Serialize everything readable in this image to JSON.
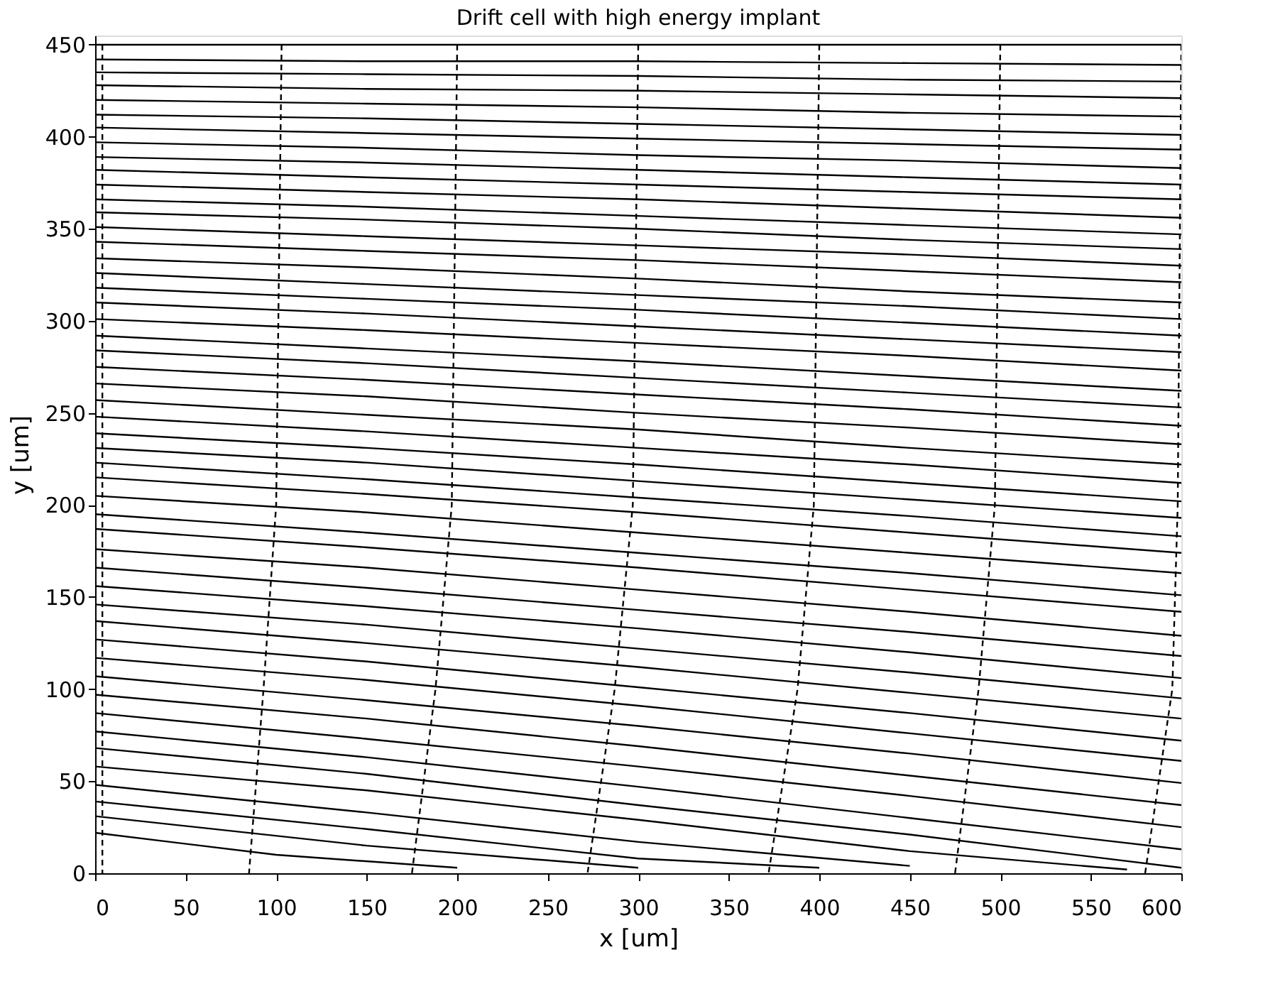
{
  "chart_data": {
    "type": "line",
    "title": "Drift cell with high energy implant",
    "xlabel": "x [um]",
    "ylabel": "y [um]",
    "xlim": [
      0,
      600
    ],
    "ylim": [
      0,
      455
    ],
    "xticks": [
      0,
      50,
      100,
      150,
      200,
      250,
      300,
      350,
      400,
      450,
      500,
      550,
      600
    ],
    "yticks": [
      0,
      50,
      100,
      150,
      200,
      250,
      300,
      350,
      400,
      450
    ],
    "grid": false,
    "legend": false,
    "line_style": "solid",
    "marker": "none",
    "x": [
      0,
      150,
      300,
      450,
      600
    ],
    "series": [
      {
        "color": "#000000",
        "values": [
          450,
          450,
          450,
          450,
          450
        ]
      },
      {
        "color": "#000000",
        "values": [
          442,
          441,
          441,
          440,
          439
        ]
      },
      {
        "color": "#000000",
        "values": [
          435,
          434,
          433,
          431,
          430
        ]
      },
      {
        "color": "#000000",
        "values": [
          428,
          426,
          425,
          423,
          421
        ]
      },
      {
        "color": "#000000",
        "values": [
          420,
          418,
          416,
          413,
          411
        ]
      },
      {
        "color": "#000000",
        "values": [
          412,
          410,
          407,
          404,
          401
        ]
      },
      {
        "color": "#000000",
        "values": [
          405,
          402,
          399,
          396,
          393
        ]
      },
      {
        "color": "#000000",
        "values": [
          397,
          394,
          390,
          387,
          383
        ]
      },
      {
        "color": "#000000",
        "values": [
          389,
          386,
          382,
          378,
          374
        ]
      },
      {
        "color": "#000000",
        "values": [
          382,
          378,
          374,
          370,
          366
        ]
      },
      {
        "color": "#000000",
        "values": [
          374,
          370,
          366,
          361,
          356
        ]
      },
      {
        "color": "#000000",
        "values": [
          366,
          362,
          357,
          352,
          347
        ]
      },
      {
        "color": "#000000",
        "values": [
          359,
          355,
          350,
          344,
          339
        ]
      },
      {
        "color": "#000000",
        "values": [
          351,
          346,
          341,
          336,
          330
        ]
      },
      {
        "color": "#000000",
        "values": [
          343,
          338,
          333,
          327,
          321
        ]
      },
      {
        "color": "#000000",
        "values": [
          334,
          329,
          323,
          316,
          310
        ]
      },
      {
        "color": "#000000",
        "values": [
          326,
          320,
          314,
          308,
          301
        ]
      },
      {
        "color": "#000000",
        "values": [
          318,
          312,
          306,
          299,
          292
        ]
      },
      {
        "color": "#000000",
        "values": [
          310,
          304,
          297,
          290,
          283
        ]
      },
      {
        "color": "#000000",
        "values": [
          301,
          295,
          288,
          281,
          273
        ]
      },
      {
        "color": "#000000",
        "values": [
          292,
          285,
          278,
          270,
          262
        ]
      },
      {
        "color": "#000000",
        "values": [
          284,
          277,
          269,
          261,
          253
        ]
      },
      {
        "color": "#000000",
        "values": [
          275,
          268,
          260,
          252,
          243
        ]
      },
      {
        "color": "#000000",
        "values": [
          266,
          259,
          250,
          242,
          233
        ]
      },
      {
        "color": "#000000",
        "values": [
          257,
          249,
          241,
          231,
          222
        ]
      },
      {
        "color": "#000000",
        "values": [
          248,
          240,
          231,
          222,
          212
        ]
      },
      {
        "color": "#000000",
        "values": [
          239,
          231,
          222,
          212,
          202
        ]
      },
      {
        "color": "#000000",
        "values": [
          231,
          223,
          213,
          203,
          193
        ]
      },
      {
        "color": "#000000",
        "values": [
          223,
          214,
          204,
          194,
          183
        ]
      },
      {
        "color": "#000000",
        "values": [
          215,
          206,
          196,
          185,
          174
        ]
      },
      {
        "color": "#000000",
        "values": [
          205,
          196,
          185,
          174,
          163
        ]
      },
      {
        "color": "#000000",
        "values": [
          195,
          185,
          174,
          163,
          151
        ]
      },
      {
        "color": "#000000",
        "values": [
          187,
          177,
          166,
          154,
          142
        ]
      },
      {
        "color": "#000000",
        "values": [
          176,
          166,
          154,
          142,
          129
        ]
      },
      {
        "color": "#000000",
        "values": [
          166,
          155,
          143,
          131,
          118
        ]
      },
      {
        "color": "#000000",
        "values": [
          156,
          145,
          133,
          120,
          106
        ]
      },
      {
        "color": "#000000",
        "values": [
          146,
          135,
          122,
          109,
          95
        ]
      },
      {
        "color": "#000000",
        "values": [
          137,
          125,
          112,
          98,
          84
        ]
      },
      {
        "color": "#000000",
        "values": [
          127,
          115,
          101,
          87,
          72
        ]
      },
      {
        "color": "#000000",
        "values": [
          117,
          105,
          91,
          76,
          61
        ]
      },
      {
        "color": "#000000",
        "values": [
          107,
          94,
          80,
          65,
          49
        ]
      },
      {
        "color": "#000000",
        "values": [
          97,
          84,
          69,
          53,
          37
        ]
      },
      {
        "color": "#000000",
        "values": [
          87,
          73,
          58,
          42,
          25
        ]
      },
      {
        "color": "#000000",
        "values": [
          77,
          63,
          47,
          30,
          13
        ]
      },
      {
        "color": "#000000",
        "values": [
          68,
          54,
          37,
          21,
          3
        ]
      },
      {
        "color": "#000000",
        "x": [
          0,
          150,
          300,
          450,
          570
        ],
        "values": [
          58,
          45,
          29,
          12,
          2
        ]
      },
      {
        "color": "#000000",
        "x": [
          0,
          150,
          300,
          450
        ],
        "values": [
          48,
          33,
          17,
          4
        ]
      },
      {
        "color": "#000000",
        "x": [
          0,
          150,
          300,
          400
        ],
        "values": [
          39,
          24,
          8,
          3
        ]
      },
      {
        "color": "#000000",
        "x": [
          0,
          150,
          300
        ],
        "values": [
          31,
          15,
          3
        ]
      },
      {
        "color": "#000000",
        "x": [
          0,
          100,
          200
        ],
        "values": [
          22,
          10,
          3
        ]
      },
      {
        "color": "#000000",
        "line_style": "dashed",
        "x": [
          4,
          4,
          4,
          4
        ],
        "values": [
          450,
          200,
          100,
          0
        ]
      },
      {
        "color": "#000000",
        "line_style": "dashed",
        "x": [
          103,
          100,
          93,
          85
        ],
        "values": [
          450,
          200,
          100,
          0
        ]
      },
      {
        "color": "#000000",
        "line_style": "dashed",
        "x": [
          200,
          197,
          188,
          175
        ],
        "values": [
          450,
          200,
          100,
          0
        ]
      },
      {
        "color": "#000000",
        "line_style": "dashed",
        "x": [
          300,
          297,
          287,
          272
        ],
        "values": [
          450,
          200,
          100,
          0
        ]
      },
      {
        "color": "#000000",
        "line_style": "dashed",
        "x": [
          400,
          397,
          388,
          372
        ],
        "values": [
          450,
          200,
          100,
          0
        ]
      },
      {
        "color": "#000000",
        "line_style": "dashed",
        "x": [
          500,
          497,
          488,
          475
        ],
        "values": [
          450,
          200,
          100,
          0
        ]
      },
      {
        "color": "#000000",
        "line_style": "dashed",
        "x": [
          600,
          598,
          595,
          580
        ],
        "values": [
          450,
          200,
          100,
          0
        ]
      }
    ]
  }
}
